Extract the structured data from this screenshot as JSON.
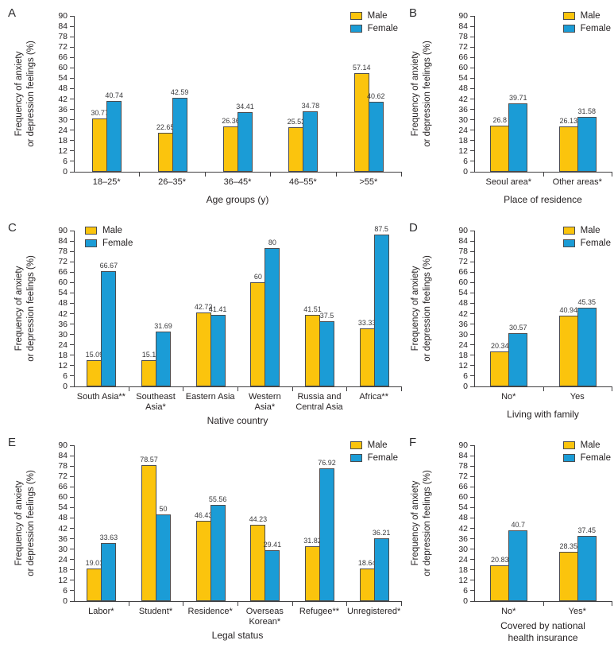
{
  "figure": {
    "y_axis": {
      "label": "Frequency of anxiety\nor depression feelings (%)",
      "min": 0,
      "max": 90,
      "tick_step": 6,
      "ticks": [
        0,
        6,
        12,
        18,
        24,
        30,
        36,
        42,
        48,
        54,
        60,
        66,
        72,
        78,
        84,
        90
      ]
    },
    "legend": {
      "labels": [
        "Male",
        "Female"
      ]
    },
    "colors": {
      "male_bar": "#FBC40D",
      "female_bar": "#1B9CD6",
      "bar_border": "#4C4C4E",
      "axis": "#414042",
      "text": "#231F20"
    }
  },
  "chart_data": [
    {
      "panel": "A",
      "type": "bar",
      "xlabel": "Age groups (y)",
      "ylabel": "Frequency of anxiety\nor depression feelings (%)",
      "ylim": [
        0,
        90
      ],
      "grid": false,
      "legend_position": "top-right",
      "categories": [
        "18–25*",
        "26–35*",
        "36–45*",
        "46–55*",
        ">55*"
      ],
      "series": [
        {
          "name": "Male",
          "values": [
            30.77,
            22.65,
            26.36,
            25.53,
            57.14
          ]
        },
        {
          "name": "Female",
          "values": [
            40.74,
            42.59,
            34.41,
            34.78,
            40.62
          ]
        }
      ]
    },
    {
      "panel": "B",
      "type": "bar",
      "xlabel": "Place of residence",
      "ylabel": "Frequency of anxiety\nor depression feelings (%)",
      "ylim": [
        0,
        90
      ],
      "grid": false,
      "legend_position": "top-right",
      "categories": [
        "Seoul area*",
        "Other areas*"
      ],
      "series": [
        {
          "name": "Male",
          "values": [
            26.8,
            26.13
          ]
        },
        {
          "name": "Female",
          "values": [
            39.71,
            31.58
          ]
        }
      ]
    },
    {
      "panel": "C",
      "type": "bar",
      "xlabel": "Native country",
      "ylabel": "Frequency of anxiety\nor depression feelings (%)",
      "ylim": [
        0,
        90
      ],
      "grid": false,
      "legend_position": "top-left",
      "categories": [
        "South Asia**",
        "Southeast\nAsia*",
        "Eastern Asia",
        "Western\nAsia*",
        "Russia and\nCentral Asia",
        "Africa**"
      ],
      "series": [
        {
          "name": "Male",
          "values": [
            15.09,
            15.1,
            42.72,
            60,
            41.51,
            33.33
          ]
        },
        {
          "name": "Female",
          "values": [
            66.67,
            31.69,
            41.41,
            80,
            37.5,
            87.5
          ]
        }
      ]
    },
    {
      "panel": "D",
      "type": "bar",
      "xlabel": "Living with family",
      "ylabel": "Frequency of anxiety\nor depression feelings (%)",
      "ylim": [
        0,
        90
      ],
      "grid": false,
      "legend_position": "top-right",
      "categories": [
        "No*",
        "Yes"
      ],
      "series": [
        {
          "name": "Male",
          "values": [
            20.34,
            40.94
          ]
        },
        {
          "name": "Female",
          "values": [
            30.57,
            45.35
          ]
        }
      ]
    },
    {
      "panel": "E",
      "type": "bar",
      "xlabel": "Legal status",
      "ylabel": "Frequency of anxiety\nor depression feelings (%)",
      "ylim": [
        0,
        90
      ],
      "grid": false,
      "legend_position": "top-right",
      "categories": [
        "Labor*",
        "Student*",
        "Residence*",
        "Overseas\nKorean*",
        "Refugee**",
        "Unregistered*"
      ],
      "series": [
        {
          "name": "Male",
          "values": [
            19.01,
            78.57,
            46.43,
            44.23,
            31.82,
            18.64
          ]
        },
        {
          "name": "Female",
          "values": [
            33.63,
            50,
            55.56,
            29.41,
            76.92,
            36.21
          ]
        }
      ]
    },
    {
      "panel": "F",
      "type": "bar",
      "xlabel": "Covered by national\nhealth insurance",
      "ylabel": "Frequency of anxiety\nor depression feelings (%)",
      "ylim": [
        0,
        90
      ],
      "grid": false,
      "legend_position": "top-right",
      "categories": [
        "No*",
        "Yes*"
      ],
      "series": [
        {
          "name": "Male",
          "values": [
            20.83,
            28.35
          ]
        },
        {
          "name": "Female",
          "values": [
            40.7,
            37.45
          ]
        }
      ]
    }
  ]
}
